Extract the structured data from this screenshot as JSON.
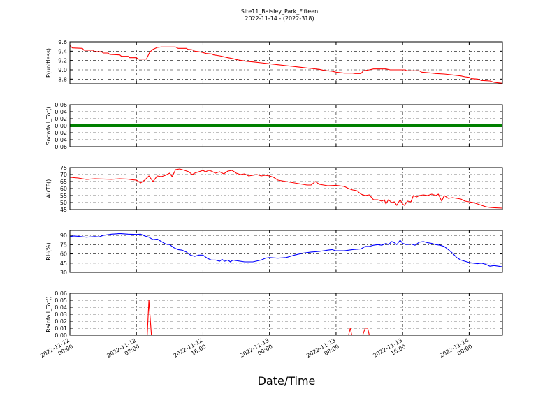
{
  "title": {
    "line1": "Site11_Baisley_Park_Fifteen",
    "line2": "2022-11-14 - (2022-318)"
  },
  "xlabel": "Date/Time",
  "x_ticks": [
    {
      "hour": 0,
      "line1": "2022-11-12",
      "line2": "00:00"
    },
    {
      "hour": 8,
      "line1": "2022-11-12",
      "line2": "08:00"
    },
    {
      "hour": 16,
      "line1": "2022-11-12",
      "line2": "16:00"
    },
    {
      "hour": 24,
      "line1": "2022-11-13",
      "line2": "00:00"
    },
    {
      "hour": 32,
      "line1": "2022-11-13",
      "line2": "08:00"
    },
    {
      "hour": 40,
      "line1": "2022-11-13",
      "line2": "16:00"
    },
    {
      "hour": 48,
      "line1": "2022-11-14",
      "line2": "00:00"
    }
  ],
  "chart_data": [
    {
      "type": "line",
      "ylabel": "P(unitless)",
      "ylim": [
        8.7,
        9.6
      ],
      "yticks": [
        "8.8",
        "9.0",
        "9.2",
        "9.4",
        "9.6"
      ],
      "ytick_values": [
        8.8,
        9.0,
        9.2,
        9.4,
        9.6
      ],
      "grid": true,
      "color": "#ff0000",
      "points": [
        [
          0,
          9.52
        ],
        [
          0.3,
          9.47
        ],
        [
          1.5,
          9.46
        ],
        [
          1.7,
          9.42
        ],
        [
          2.8,
          9.42
        ],
        [
          3,
          9.39
        ],
        [
          3.8,
          9.39
        ],
        [
          4,
          9.36
        ],
        [
          4.6,
          9.36
        ],
        [
          4.8,
          9.33
        ],
        [
          6,
          9.32
        ],
        [
          6.2,
          9.29
        ],
        [
          7,
          9.29
        ],
        [
          7.2,
          9.26
        ],
        [
          8,
          9.26
        ],
        [
          8.2,
          9.23
        ],
        [
          9.2,
          9.23
        ],
        [
          9.6,
          9.38
        ],
        [
          10,
          9.44
        ],
        [
          10.5,
          9.48
        ],
        [
          11,
          9.49
        ],
        [
          12.7,
          9.49
        ],
        [
          13,
          9.46
        ],
        [
          14,
          9.46
        ],
        [
          14.2,
          9.44
        ],
        [
          14.7,
          9.43
        ],
        [
          15,
          9.4
        ],
        [
          15.5,
          9.39
        ],
        [
          16,
          9.37
        ],
        [
          16.4,
          9.35
        ],
        [
          17,
          9.34
        ],
        [
          17.3,
          9.32
        ],
        [
          18,
          9.3
        ],
        [
          18.5,
          9.28
        ],
        [
          19,
          9.26
        ],
        [
          19.6,
          9.24
        ],
        [
          20,
          9.22
        ],
        [
          20.3,
          9.21
        ],
        [
          21,
          9.19
        ],
        [
          21.3,
          9.18
        ],
        [
          22,
          9.17
        ],
        [
          23,
          9.15
        ],
        [
          24,
          9.13
        ],
        [
          25,
          9.11
        ],
        [
          26,
          9.09
        ],
        [
          27,
          9.07
        ],
        [
          28,
          9.05
        ],
        [
          29,
          9.03
        ],
        [
          30,
          9.01
        ],
        [
          30.5,
          8.99
        ],
        [
          31.5,
          8.97
        ],
        [
          32,
          8.95
        ],
        [
          33,
          8.93
        ],
        [
          34,
          8.93
        ],
        [
          34.3,
          8.92
        ],
        [
          35,
          8.92
        ],
        [
          35.3,
          8.98
        ],
        [
          36,
          9.0
        ],
        [
          36.5,
          9.02
        ],
        [
          38,
          9.02
        ],
        [
          38.5,
          9.0
        ],
        [
          40.3,
          9.0
        ],
        [
          40.5,
          8.98
        ],
        [
          42,
          8.98
        ],
        [
          42.3,
          8.95
        ],
        [
          43,
          8.94
        ],
        [
          44,
          8.92
        ],
        [
          45,
          8.91
        ],
        [
          46,
          8.89
        ],
        [
          47,
          8.87
        ],
        [
          47.5,
          8.85
        ],
        [
          48,
          8.84
        ],
        [
          48.3,
          8.81
        ],
        [
          49,
          8.8
        ],
        [
          49.5,
          8.77
        ],
        [
          50.5,
          8.76
        ],
        [
          51,
          8.73
        ],
        [
          51.5,
          8.72
        ],
        [
          52,
          8.71
        ]
      ]
    },
    {
      "type": "line",
      "ylabel": "Snowfall_Tot()",
      "ylim": [
        -0.06,
        0.06
      ],
      "yticks": [
        "−0.06",
        "−0.04",
        "−0.02",
        "0.00",
        "0.02",
        "0.04",
        "0.06"
      ],
      "ytick_values": [
        -0.06,
        -0.04,
        -0.02,
        0,
        0.02,
        0.04,
        0.06
      ],
      "grid": true,
      "color": "#008000",
      "constant_value": 0.0,
      "line_width": 4
    },
    {
      "type": "line",
      "ylabel": "AirTF()",
      "ylim": [
        45,
        75
      ],
      "yticks": [
        "45",
        "50",
        "55",
        "60",
        "65",
        "70",
        "75"
      ],
      "ytick_values": [
        45,
        50,
        55,
        60,
        65,
        70,
        75
      ],
      "grid": true,
      "color": "#ff0000",
      "points": [
        [
          0,
          68
        ],
        [
          1,
          67.5
        ],
        [
          2,
          66.5
        ],
        [
          3,
          67
        ],
        [
          4,
          66.8
        ],
        [
          5,
          66.6
        ],
        [
          6,
          67
        ],
        [
          7,
          66.7
        ],
        [
          7.5,
          66.3
        ],
        [
          8,
          66
        ],
        [
          8.5,
          64
        ],
        [
          9,
          66
        ],
        [
          9.5,
          69
        ],
        [
          10,
          65
        ],
        [
          10.5,
          69
        ],
        [
          11,
          68.5
        ],
        [
          11.5,
          69.5
        ],
        [
          12,
          71
        ],
        [
          12.3,
          68.5
        ],
        [
          12.7,
          73.5
        ],
        [
          13.2,
          74
        ],
        [
          13.8,
          73
        ],
        [
          14.3,
          72
        ],
        [
          14.7,
          70
        ],
        [
          15,
          71
        ],
        [
          15.5,
          72
        ],
        [
          16,
          73
        ],
        [
          16.3,
          72
        ],
        [
          16.7,
          73
        ],
        [
          17,
          72.5
        ],
        [
          17.5,
          71
        ],
        [
          18,
          72
        ],
        [
          18.5,
          70.5
        ],
        [
          19,
          72.5
        ],
        [
          19.5,
          73
        ],
        [
          20,
          71
        ],
        [
          20.5,
          70
        ],
        [
          21,
          70.5
        ],
        [
          21.5,
          69
        ],
        [
          22,
          69.5
        ],
        [
          22.5,
          70
        ],
        [
          23,
          69
        ],
        [
          23.5,
          69.5
        ],
        [
          24,
          69
        ],
        [
          24.5,
          68
        ],
        [
          25,
          66
        ],
        [
          26,
          65
        ],
        [
          27,
          64
        ],
        [
          28,
          63
        ],
        [
          28.5,
          62.5
        ],
        [
          29,
          62.5
        ],
        [
          29.5,
          65
        ],
        [
          30,
          63
        ],
        [
          31,
          62
        ],
        [
          32,
          62.3
        ],
        [
          33,
          61.5
        ],
        [
          33.5,
          60
        ],
        [
          34,
          59
        ],
        [
          34.5,
          58.5
        ],
        [
          35,
          56
        ],
        [
          35.5,
          55
        ],
        [
          36,
          55.5
        ],
        [
          36.5,
          52
        ],
        [
          37,
          52
        ],
        [
          37.5,
          51
        ],
        [
          37.8,
          52
        ],
        [
          38,
          49
        ],
        [
          38.3,
          52
        ],
        [
          38.7,
          50
        ],
        [
          39,
          50.5
        ],
        [
          39.3,
          48
        ],
        [
          39.7,
          52
        ],
        [
          40,
          49
        ],
        [
          40.2,
          48
        ],
        [
          40.6,
          51
        ],
        [
          41,
          50.5
        ],
        [
          41.3,
          55
        ],
        [
          41.7,
          54
        ],
        [
          42,
          55
        ],
        [
          42.5,
          55.5
        ],
        [
          43,
          55
        ],
        [
          43.5,
          56
        ],
        [
          44,
          55
        ],
        [
          44.3,
          56
        ],
        [
          44.7,
          51
        ],
        [
          45,
          55
        ],
        [
          45.5,
          53
        ],
        [
          46,
          53.5
        ],
        [
          46.5,
          53
        ],
        [
          47,
          52.5
        ],
        [
          47.5,
          51
        ],
        [
          48,
          50.5
        ],
        [
          48.5,
          50
        ],
        [
          49,
          49
        ],
        [
          49.5,
          48
        ],
        [
          50,
          47
        ],
        [
          50.5,
          46.5
        ],
        [
          51,
          46.3
        ],
        [
          52,
          46
        ]
      ]
    },
    {
      "type": "line",
      "ylabel": "RH(%)",
      "ylim": [
        30,
        98
      ],
      "yticks": [
        "30",
        "45",
        "60",
        "75",
        "90"
      ],
      "ytick_values": [
        30,
        45,
        60,
        75,
        90
      ],
      "grid": true,
      "color": "#0000ff",
      "points": [
        [
          0,
          88
        ],
        [
          0.5,
          89
        ],
        [
          1,
          88.5
        ],
        [
          2,
          87
        ],
        [
          3,
          88
        ],
        [
          3.5,
          87.5
        ],
        [
          4,
          90
        ],
        [
          5,
          92
        ],
        [
          5.5,
          92.5
        ],
        [
          6,
          93
        ],
        [
          7,
          92
        ],
        [
          8,
          91.5
        ],
        [
          8.5,
          92
        ],
        [
          9,
          89
        ],
        [
          9.5,
          87
        ],
        [
          10,
          83
        ],
        [
          10.5,
          84
        ],
        [
          11,
          80
        ],
        [
          11.5,
          76
        ],
        [
          12,
          75
        ],
        [
          12.5,
          70
        ],
        [
          13,
          67
        ],
        [
          13.5,
          66
        ],
        [
          14,
          63
        ],
        [
          14.5,
          58
        ],
        [
          15,
          56
        ],
        [
          15.5,
          58
        ],
        [
          16,
          58
        ],
        [
          16.5,
          53
        ],
        [
          17,
          50
        ],
        [
          17.5,
          50
        ],
        [
          18,
          48
        ],
        [
          18.3,
          51
        ],
        [
          18.6,
          48
        ],
        [
          19,
          50
        ],
        [
          19.3,
          47
        ],
        [
          19.6,
          50
        ],
        [
          20,
          49
        ],
        [
          21,
          47
        ],
        [
          22,
          47
        ],
        [
          23,
          50
        ],
        [
          23.5,
          53
        ],
        [
          24,
          54
        ],
        [
          25,
          53
        ],
        [
          26,
          54
        ],
        [
          26.5,
          56
        ],
        [
          27,
          58
        ],
        [
          28,
          61
        ],
        [
          29,
          63
        ],
        [
          30,
          64
        ],
        [
          31,
          66
        ],
        [
          31.5,
          67
        ],
        [
          32,
          65
        ],
        [
          33,
          65
        ],
        [
          34,
          67
        ],
        [
          35,
          68
        ],
        [
          35.5,
          72
        ],
        [
          36,
          72
        ],
        [
          36.5,
          74
        ],
        [
          37,
          75
        ],
        [
          37.5,
          74
        ],
        [
          38,
          77
        ],
        [
          38.3,
          75
        ],
        [
          38.7,
          80
        ],
        [
          39,
          78
        ],
        [
          39.3,
          75
        ],
        [
          39.7,
          82
        ],
        [
          40,
          77
        ],
        [
          40.5,
          75
        ],
        [
          41,
          76
        ],
        [
          41.5,
          74
        ],
        [
          42,
          79
        ],
        [
          42.5,
          80
        ],
        [
          43,
          78
        ],
        [
          43.5,
          77
        ],
        [
          44,
          75
        ],
        [
          44.5,
          74
        ],
        [
          45,
          72
        ],
        [
          45.5,
          67
        ],
        [
          46,
          61
        ],
        [
          46.5,
          54
        ],
        [
          47,
          50
        ],
        [
          47.5,
          48
        ],
        [
          48,
          46
        ],
        [
          48.5,
          45
        ],
        [
          49,
          44
        ],
        [
          49.5,
          45
        ],
        [
          50,
          43
        ],
        [
          50.5,
          40
        ],
        [
          51,
          41
        ],
        [
          52,
          39
        ]
      ]
    },
    {
      "type": "line",
      "ylabel": "Rainfall_Tot()",
      "ylim": [
        0,
        0.06
      ],
      "yticks": [
        "0.00",
        "0.01",
        "0.02",
        "0.03",
        "0.04",
        "0.05",
        "0.06"
      ],
      "ytick_values": [
        0,
        0.01,
        0.02,
        0.03,
        0.04,
        0.05,
        0.06
      ],
      "grid": true,
      "color": "#ff0000",
      "points": [
        [
          0,
          0
        ],
        [
          9.3,
          0
        ],
        [
          9.5,
          0.05
        ],
        [
          9.8,
          0
        ],
        [
          33.5,
          0
        ],
        [
          33.7,
          0.01
        ],
        [
          33.9,
          0
        ],
        [
          35.2,
          0
        ],
        [
          35.5,
          0.01
        ],
        [
          35.8,
          0.01
        ],
        [
          36,
          0
        ],
        [
          52,
          0
        ]
      ]
    }
  ]
}
